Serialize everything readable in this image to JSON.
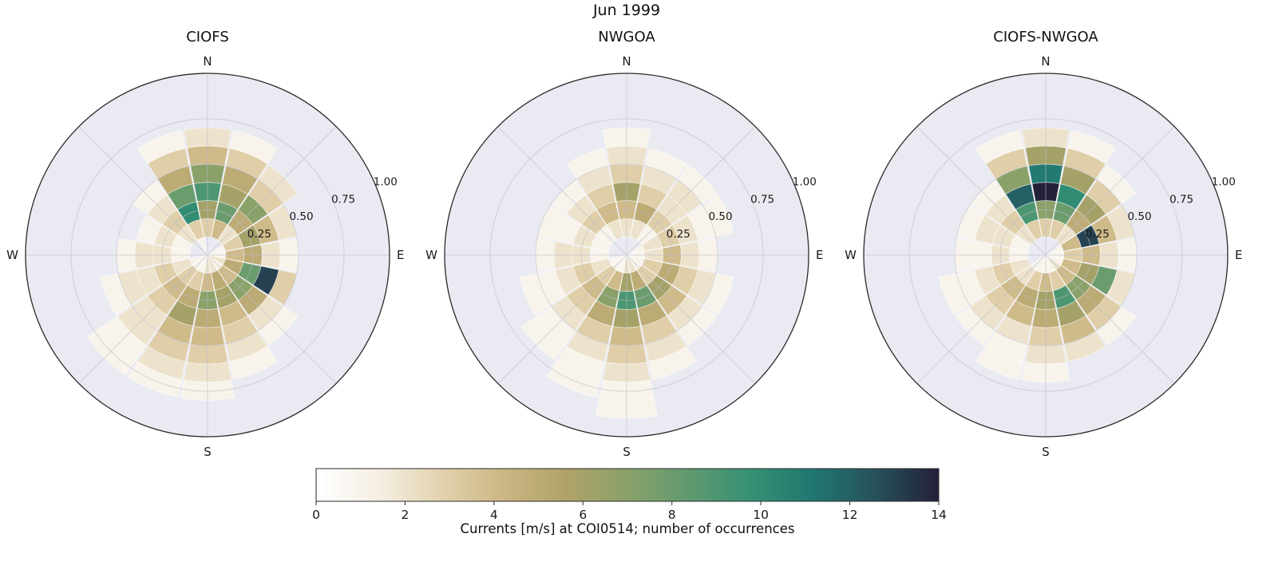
{
  "page": {
    "title": "Jun 1999"
  },
  "colorbar": {
    "label": "Currents [m/s] at COI0514; number of occurrences",
    "ticks": [
      0,
      2,
      4,
      6,
      8,
      10,
      12,
      14
    ],
    "min": 0,
    "max": 14
  },
  "colormap": {
    "stops": [
      {
        "t": 0.0,
        "color": "#ffffff"
      },
      {
        "t": 0.1,
        "color": "#f5efe4"
      },
      {
        "t": 0.2,
        "color": "#e2d2ae"
      },
      {
        "t": 0.3,
        "color": "#ccb684"
      },
      {
        "t": 0.4,
        "color": "#b0a269"
      },
      {
        "t": 0.5,
        "color": "#8aa169"
      },
      {
        "t": 0.6,
        "color": "#5f9a70"
      },
      {
        "t": 0.7,
        "color": "#359074"
      },
      {
        "t": 0.8,
        "color": "#20766f"
      },
      {
        "t": 0.9,
        "color": "#27505c"
      },
      {
        "t": 1.0,
        "color": "#23203a"
      }
    ]
  },
  "polar": {
    "compass": {
      "n": "N",
      "e": "E",
      "s": "S",
      "w": "W"
    },
    "radial_ticks": [
      0.25,
      0.5,
      0.75,
      1.0
    ],
    "radial_tick_labels": [
      "0.25",
      "0.50",
      "0.75",
      "1.00"
    ],
    "radial_label_angle_deg": 67.5,
    "r_max": 1.0,
    "bg_color": "#eaeaf2",
    "grid_color": "#bcbcc8",
    "edge_color": "#2a2a2a"
  },
  "chart_data": [
    {
      "type": "heatmap",
      "title": "CIOFS",
      "coords": "polar",
      "units": "number of occurrences",
      "value_range": [
        0,
        14
      ],
      "direction_convention": "compass degrees, 0 = N at top, clockwise",
      "direction_bin_centers_deg": [
        0,
        22.5,
        45,
        67.5,
        90,
        112.5,
        135,
        157.5,
        180,
        202.5,
        225,
        247.5,
        270,
        292.5,
        315,
        337.5
      ],
      "r_bin_edges": [
        0,
        0.1,
        0.2,
        0.3,
        0.4,
        0.5,
        0.6,
        0.7,
        0.8,
        0.9,
        1.0
      ],
      "values": [
        [
          0,
          3,
          6,
          9,
          7,
          4,
          2,
          0,
          0,
          0
        ],
        [
          0,
          4,
          8,
          6,
          5,
          3,
          1,
          0,
          0,
          0
        ],
        [
          0,
          2,
          5,
          7,
          3,
          2,
          0,
          0,
          0,
          0
        ],
        [
          1,
          3,
          6,
          4,
          2,
          0,
          0,
          0,
          0,
          0
        ],
        [
          1,
          4,
          5,
          2,
          1,
          0,
          0,
          0,
          0,
          0
        ],
        [
          2,
          5,
          8,
          13,
          3,
          0,
          0,
          0,
          0,
          0
        ],
        [
          1,
          4,
          7,
          5,
          2,
          1,
          0,
          0,
          0,
          0
        ],
        [
          2,
          5,
          6,
          4,
          3,
          2,
          1,
          0,
          0,
          0
        ],
        [
          2,
          4,
          7,
          5,
          4,
          3,
          2,
          1,
          0,
          0
        ],
        [
          1,
          3,
          5,
          6,
          4,
          3,
          2,
          1,
          0,
          0
        ],
        [
          1,
          3,
          4,
          3,
          2,
          2,
          1,
          1,
          0,
          0
        ],
        [
          1,
          2,
          3,
          2,
          2,
          1,
          0,
          0,
          0,
          0
        ],
        [
          0,
          1,
          2,
          2,
          1,
          0,
          0,
          0,
          0,
          0
        ],
        [
          0,
          1,
          2,
          1,
          0,
          0,
          0,
          0,
          0,
          0
        ],
        [
          0,
          2,
          3,
          2,
          1,
          0,
          0,
          0,
          0,
          0
        ],
        [
          1,
          3,
          10,
          8,
          5,
          3,
          1,
          0,
          0,
          0
        ]
      ]
    },
    {
      "type": "heatmap",
      "title": "NWGOA",
      "coords": "polar",
      "units": "number of occurrences",
      "value_range": [
        0,
        14
      ],
      "direction_convention": "compass degrees, 0 = N at top, clockwise",
      "direction_bin_centers_deg": [
        0,
        22.5,
        45,
        67.5,
        90,
        112.5,
        135,
        157.5,
        180,
        202.5,
        225,
        247.5,
        270,
        292.5,
        315,
        337.5
      ],
      "r_bin_edges": [
        0,
        0.1,
        0.2,
        0.3,
        0.4,
        0.5,
        0.6,
        0.7,
        0.8,
        0.9,
        1.0
      ],
      "values": [
        [
          0,
          2,
          4,
          6,
          3,
          2,
          1,
          0,
          0,
          0
        ],
        [
          0,
          2,
          5,
          3,
          2,
          1,
          0,
          0,
          0,
          0
        ],
        [
          0,
          1,
          3,
          2,
          2,
          1,
          0,
          0,
          0,
          0
        ],
        [
          1,
          2,
          3,
          2,
          1,
          1,
          0,
          0,
          0,
          0
        ],
        [
          1,
          2,
          4,
          2,
          1,
          0,
          0,
          0,
          0,
          0
        ],
        [
          1,
          3,
          5,
          3,
          2,
          1,
          0,
          0,
          0,
          0
        ],
        [
          1,
          3,
          6,
          4,
          2,
          1,
          0,
          0,
          0,
          0
        ],
        [
          2,
          5,
          8,
          5,
          3,
          2,
          1,
          0,
          0,
          0
        ],
        [
          2,
          6,
          9,
          6,
          4,
          3,
          2,
          1,
          1,
          0
        ],
        [
          1,
          4,
          7,
          5,
          3,
          2,
          1,
          1,
          0,
          0
        ],
        [
          1,
          3,
          4,
          3,
          2,
          1,
          1,
          0,
          0,
          0
        ],
        [
          1,
          2,
          3,
          2,
          1,
          1,
          0,
          0,
          0,
          0
        ],
        [
          0,
          1,
          2,
          2,
          1,
          0,
          0,
          0,
          0,
          0
        ],
        [
          0,
          1,
          2,
          1,
          1,
          0,
          0,
          0,
          0,
          0
        ],
        [
          0,
          1,
          3,
          2,
          1,
          0,
          0,
          0,
          0,
          0
        ],
        [
          0,
          2,
          4,
          3,
          2,
          1,
          0,
          0,
          0,
          0
        ]
      ]
    },
    {
      "type": "heatmap",
      "title": "CIOFS-NWGOA",
      "coords": "polar",
      "units": "number of occurrences",
      "value_range": [
        0,
        14
      ],
      "direction_convention": "compass degrees, 0 = N at top, clockwise",
      "direction_bin_centers_deg": [
        0,
        22.5,
        45,
        67.5,
        90,
        112.5,
        135,
        157.5,
        180,
        202.5,
        225,
        247.5,
        270,
        292.5,
        315,
        337.5
      ],
      "r_bin_edges": [
        0,
        0.1,
        0.2,
        0.3,
        0.4,
        0.5,
        0.6,
        0.7,
        0.8,
        0.9,
        1.0
      ],
      "values": [
        [
          0,
          3,
          7,
          14,
          11,
          6,
          2,
          0,
          0,
          0
        ],
        [
          0,
          3,
          8,
          10,
          6,
          3,
          1,
          0,
          0,
          0
        ],
        [
          0,
          2,
          5,
          6,
          3,
          1,
          0,
          0,
          0,
          0
        ],
        [
          1,
          4,
          13,
          4,
          2,
          0,
          0,
          0,
          0,
          0
        ],
        [
          1,
          3,
          4,
          2,
          1,
          0,
          0,
          0,
          0,
          0
        ],
        [
          1,
          4,
          6,
          8,
          2,
          0,
          0,
          0,
          0,
          0
        ],
        [
          2,
          4,
          7,
          5,
          3,
          1,
          0,
          0,
          0,
          0
        ],
        [
          1,
          3,
          9,
          6,
          4,
          2,
          0,
          0,
          0,
          0
        ],
        [
          1,
          4,
          6,
          5,
          3,
          2,
          1,
          0,
          0,
          0
        ],
        [
          1,
          3,
          5,
          4,
          2,
          1,
          1,
          0,
          0,
          0
        ],
        [
          1,
          2,
          4,
          3,
          2,
          1,
          0,
          0,
          0,
          0
        ],
        [
          0,
          2,
          3,
          2,
          1,
          1,
          0,
          0,
          0,
          0
        ],
        [
          0,
          1,
          2,
          1,
          1,
          0,
          0,
          0,
          0,
          0
        ],
        [
          0,
          1,
          2,
          2,
          1,
          0,
          0,
          0,
          0,
          0
        ],
        [
          0,
          2,
          3,
          2,
          1,
          0,
          0,
          0,
          0,
          0
        ],
        [
          0,
          3,
          9,
          12,
          7,
          3,
          1,
          0,
          0,
          0
        ]
      ]
    }
  ]
}
